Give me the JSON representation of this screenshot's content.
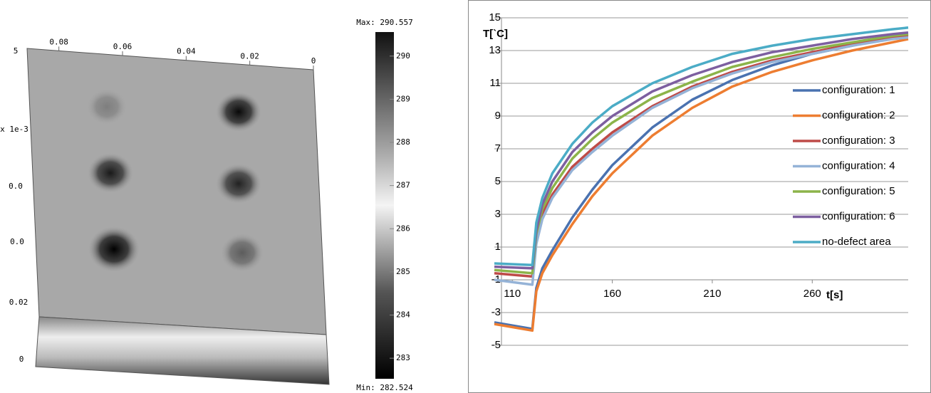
{
  "chart_data": [
    {
      "type": "heatmap",
      "max_label": "Max: 290.557",
      "min_label": "Min: 282.524",
      "colorbar_lim": [
        282.524,
        290.557
      ],
      "colorbar_ticks": [
        283,
        284,
        285,
        286,
        287,
        288,
        289,
        290
      ],
      "xlim": [
        0.09,
        0
      ],
      "xticks": [
        0.08,
        0.06,
        0.04,
        0.02,
        0
      ],
      "side_labels": [
        "5",
        "x 1e-3",
        "0.0",
        "0.0",
        "0.02",
        "0"
      ]
    },
    {
      "type": "line",
      "xlabel": "t[s]",
      "ylabel": "T[`C]",
      "xlim": [
        101,
        308
      ],
      "ylim": [
        -5,
        15
      ],
      "xticks": [
        110,
        160,
        210,
        260
      ],
      "yticks": [
        -5,
        -3,
        -1,
        1,
        3,
        5,
        7,
        9,
        11,
        13,
        15
      ],
      "x_axis_crosses": -1,
      "grid": true,
      "legend": "right",
      "x": [
        101,
        120,
        122,
        125,
        130,
        140,
        150,
        160,
        180,
        200,
        220,
        240,
        260,
        280,
        300,
        308
      ],
      "series": [
        {
          "name": "configuration: 1",
          "color": "#4a72b0",
          "values": [
            -3.6,
            -4.0,
            -1.5,
            -0.3,
            0.8,
            2.8,
            4.5,
            6.0,
            8.3,
            10.0,
            11.2,
            12.1,
            12.8,
            13.3,
            13.8,
            14.0
          ]
        },
        {
          "name": "configuration: 2",
          "color": "#ed7d31",
          "values": [
            -3.7,
            -4.1,
            -1.7,
            -0.6,
            0.5,
            2.4,
            4.1,
            5.5,
            7.8,
            9.5,
            10.8,
            11.7,
            12.4,
            13.0,
            13.5,
            13.7
          ]
        },
        {
          "name": "configuration: 3",
          "color": "#be4b48",
          "values": [
            -0.6,
            -0.8,
            1.5,
            3.0,
            4.2,
            5.9,
            7.0,
            8.0,
            9.6,
            10.8,
            11.7,
            12.4,
            12.9,
            13.4,
            13.8,
            13.9
          ]
        },
        {
          "name": "configuration: 4",
          "color": "#95b3d7",
          "values": [
            -1.0,
            -1.3,
            1.2,
            2.7,
            4.0,
            5.7,
            6.8,
            7.8,
            9.5,
            10.7,
            11.6,
            12.3,
            12.8,
            13.3,
            13.7,
            13.8
          ]
        },
        {
          "name": "configuration: 5",
          "color": "#8cb44a",
          "values": [
            -0.4,
            -0.6,
            1.8,
            3.3,
            4.6,
            6.4,
            7.6,
            8.6,
            10.1,
            11.1,
            12.0,
            12.6,
            13.1,
            13.5,
            13.9,
            14.0
          ]
        },
        {
          "name": "configuration: 6",
          "color": "#7d5fa0",
          "values": [
            -0.2,
            -0.3,
            2.0,
            3.6,
            5.0,
            6.8,
            8.0,
            9.0,
            10.5,
            11.5,
            12.3,
            12.9,
            13.3,
            13.7,
            14.0,
            14.1
          ]
        },
        {
          "name": "no-defect area",
          "color": "#4bacc6",
          "values": [
            0.0,
            -0.1,
            2.5,
            4.0,
            5.5,
            7.3,
            8.6,
            9.6,
            11.0,
            12.0,
            12.8,
            13.3,
            13.7,
            14.0,
            14.3,
            14.4
          ]
        }
      ]
    }
  ]
}
